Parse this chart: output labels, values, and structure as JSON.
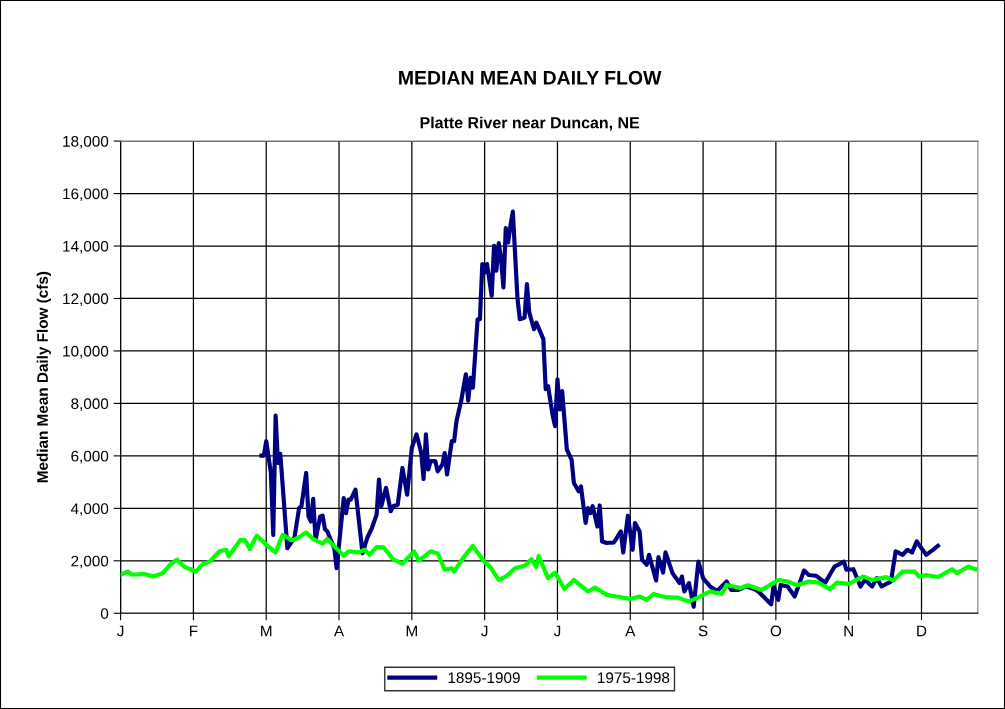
{
  "chart_data": {
    "type": "line",
    "title": "MEDIAN MEAN DAILY FLOW",
    "subtitle": "Platte River near Duncan, NE",
    "ylabel": "Median Mean Daily Flow (cfs)",
    "categories": [
      "J",
      null,
      null,
      null,
      null,
      null,
      null,
      null,
      null,
      null,
      null,
      null,
      null,
      null,
      null,
      null,
      null,
      null,
      null,
      null,
      null,
      null,
      null,
      null,
      null,
      null,
      null,
      null,
      null,
      null,
      null,
      "F",
      null,
      null,
      null,
      null,
      null,
      null,
      null,
      null,
      null,
      null,
      null,
      null,
      null,
      null,
      null,
      null,
      null,
      null,
      null,
      null,
      null,
      null,
      null,
      null,
      null,
      null,
      null,
      null,
      null,
      null,
      "M",
      null,
      null,
      null,
      null,
      null,
      null,
      null,
      null,
      null,
      null,
      null,
      null,
      null,
      null,
      null,
      null,
      null,
      null,
      null,
      null,
      null,
      null,
      null,
      null,
      null,
      null,
      null,
      null,
      null,
      null,
      "A",
      null,
      null,
      null,
      null,
      null,
      null,
      null,
      null,
      null,
      null,
      null,
      null,
      null,
      null,
      null,
      null,
      null,
      null,
      null,
      null,
      null,
      null,
      null,
      null,
      null,
      null,
      null,
      null,
      null,
      null,
      "M",
      null,
      null,
      null,
      null,
      null,
      null,
      null,
      null,
      null,
      null,
      null,
      null,
      null,
      null,
      null,
      null,
      null,
      null,
      null,
      null,
      null,
      null,
      null,
      null,
      null,
      null,
      null,
      null,
      null,
      null,
      "J",
      null,
      null,
      null,
      null,
      null,
      null,
      null,
      null,
      null,
      null,
      null,
      null,
      null,
      null,
      null,
      null,
      null,
      null,
      null,
      null,
      null,
      null,
      null,
      null,
      null,
      null,
      null,
      null,
      null,
      null,
      "J",
      null,
      null,
      null,
      null,
      null,
      null,
      null,
      null,
      null,
      null,
      null,
      null,
      null,
      null,
      null,
      null,
      null,
      null,
      null,
      null,
      null,
      null,
      null,
      null,
      null,
      null,
      null,
      null,
      null,
      null,
      "A",
      null,
      null,
      null,
      null,
      null,
      null,
      null,
      null,
      null,
      null,
      null,
      null,
      null,
      null,
      null,
      null,
      null,
      null,
      null,
      null,
      null,
      null,
      null,
      null,
      null,
      null,
      null,
      null,
      null,
      null,
      "S",
      null,
      null,
      null,
      null,
      null,
      null,
      null,
      null,
      null,
      null,
      null,
      null,
      null,
      null,
      null,
      null,
      null,
      null,
      null,
      null,
      null,
      null,
      null,
      null,
      null,
      null,
      null,
      null,
      null,
      null,
      "O",
      null,
      null,
      null,
      null,
      null,
      null,
      null,
      null,
      null,
      null,
      null,
      null,
      null,
      null,
      null,
      null,
      null,
      null,
      null,
      null,
      null,
      null,
      null,
      null,
      null,
      null,
      null,
      null,
      null,
      null,
      "N",
      null,
      null,
      null,
      null,
      null,
      null,
      null,
      null,
      null,
      null,
      null,
      null,
      null,
      null,
      null,
      null,
      null,
      null,
      null,
      null,
      null,
      null,
      null,
      null,
      null,
      null,
      null,
      null,
      null,
      null,
      "D",
      null,
      null,
      null,
      null,
      null,
      null,
      null,
      null,
      null,
      null,
      null,
      null,
      null,
      null,
      null,
      null,
      null,
      null,
      null,
      null,
      null,
      null,
      null
    ],
    "ylim": [
      0,
      18000
    ],
    "yticks": [
      {
        "value": 0,
        "label": "0"
      },
      {
        "value": 2000,
        "label": "2,000"
      },
      {
        "value": 4000,
        "label": "4,000"
      },
      {
        "value": 6000,
        "label": "6,000"
      },
      {
        "value": 8000,
        "label": "8,000"
      },
      {
        "value": 10000,
        "label": "10,000"
      },
      {
        "value": 12000,
        "label": "12,000"
      },
      {
        "value": 14000,
        "label": "14,000"
      },
      {
        "value": 16000,
        "label": "16,000"
      },
      {
        "value": 18000,
        "label": "18,000"
      }
    ],
    "grid": true,
    "legend": "bottom",
    "marker": "none",
    "line_style": "solid",
    "series": [
      {
        "name": "1895-1909",
        "color": "#000080",
        "values": [
          null,
          null,
          null,
          null,
          null,
          null,
          null,
          null,
          null,
          null,
          null,
          null,
          null,
          null,
          null,
          null,
          null,
          null,
          null,
          null,
          null,
          null,
          null,
          null,
          null,
          null,
          null,
          null,
          null,
          null,
          null,
          null,
          null,
          null,
          null,
          null,
          null,
          null,
          null,
          null,
          null,
          null,
          null,
          null,
          null,
          null,
          null,
          null,
          null,
          null,
          null,
          null,
          null,
          null,
          null,
          null,
          null,
          null,
          null,
          null,
          6010,
          6010,
          6560,
          5960,
          5350,
          2990,
          7540,
          5730,
          6080,
          4880,
          3680,
          2480,
          2610,
          2740,
          2870,
          3440,
          4010,
          4080,
          4720,
          5350,
          3690,
          3500,
          4360,
          2800,
          3250,
          3690,
          3720,
          3210,
          3120,
          2910,
          2690,
          2480,
          1720,
          2610,
          3500,
          4390,
          3820,
          4330,
          4330,
          4520,
          4710,
          3900,
          3100,
          2290,
          2580,
          2870,
          3060,
          3250,
          3510,
          3760,
          5100,
          4080,
          4430,
          4780,
          4340,
          3890,
          4080,
          4110,
          4140,
          4840,
          5540,
          5030,
          4520,
          5420,
          6310,
          6570,
          6820,
          6470,
          6110,
          5120,
          6820,
          5480,
          5800,
          5800,
          5800,
          5410,
          5540,
          5670,
          6110,
          5290,
          5930,
          6560,
          6560,
          7320,
          7710,
          8090,
          8600,
          9110,
          8110,
          8980,
          8600,
          9910,
          11210,
          11210,
          13310,
          12990,
          13310,
          12710,
          12100,
          14010,
          13060,
          14110,
          13500,
          12420,
          14680,
          14140,
          14780,
          15310,
          13640,
          11970,
          11210,
          11240,
          11270,
          12550,
          11460,
          11150,
          10830,
          11080,
          10870,
          10660,
          10450,
          8540,
          8660,
          8090,
          7520,
          7130,
          8920,
          7770,
          8470,
          7360,
          6240,
          6050,
          5860,
          4970,
          4810,
          4650,
          4840,
          4140,
          3440,
          4010,
          3820,
          4080,
          3700,
          3310,
          4110,
          2740,
          2710,
          2680,
          2690,
          2690,
          2700,
          2840,
          2980,
          3120,
          2320,
          3020,
          3720,
          3070,
          2420,
          3440,
          3280,
          3120,
          2040,
          1950,
          1850,
          2230,
          1900,
          1580,
          1250,
          2140,
          1850,
          1550,
          2320,
          2060,
          1790,
          1530,
          1400,
          1280,
          1150,
          1400,
          830,
          990,
          1150,
          700,
          250,
          1110,
          1970,
          1660,
          1340,
          1230,
          1130,
          1020,
          960,
          910,
          850,
          940,
          1030,
          1120,
          1210,
          1050,
          890,
          890,
          890,
          890,
          930,
          980,
          1020,
          1000,
          970,
          950,
          920,
          860,
          790,
          700,
          610,
          520,
          430,
          340,
          1020,
          770,
          510,
          1080,
          1060,
          1040,
          1020,
          890,
          770,
          640,
          890,
          1130,
          1380,
          1630,
          1550,
          1460,
          1450,
          1440,
          1430,
          1370,
          1300,
          1240,
          1170,
          1320,
          1480,
          1630,
          1780,
          1830,
          1870,
          1920,
          1970,
          1660,
          1670,
          1670,
          1680,
          1460,
          1240,
          1020,
          1150,
          1270,
          1190,
          1100,
          1020,
          1180,
          1340,
          1180,
          1020,
          1070,
          1120,
          1160,
          1210,
          1790,
          2360,
          2320,
          2270,
          2230,
          2330,
          2420,
          2370,
          2320,
          2530,
          2740,
          2610,
          2480,
          2360,
          2230,
          2290,
          2360,
          2420,
          2500,
          2570,
          null,
          null,
          null,
          null,
          null,
          null,
          null,
          null,
          null,
          null,
          null,
          null,
          null,
          null,
          null,
          null
        ]
      },
      {
        "name": "1975-1998",
        "color": "#00ff00",
        "values": [
          1470,
          1510,
          1550,
          1590,
          1530,
          1470,
          1480,
          1480,
          1490,
          1490,
          1500,
          1480,
          1450,
          1430,
          1400,
          1430,
          1470,
          1500,
          1530,
          1640,
          1740,
          1850,
          1910,
          1980,
          2040,
          1950,
          1870,
          1780,
          1740,
          1700,
          1670,
          1630,
          1590,
          1680,
          1780,
          1870,
          1900,
          1940,
          1970,
          2070,
          2170,
          2260,
          2360,
          2380,
          2400,
          2420,
          2170,
          2300,
          2420,
          2550,
          2670,
          2800,
          2790,
          2780,
          2620,
          2450,
          2620,
          2790,
          2960,
          2870,
          2790,
          2700,
          2610,
          2540,
          2470,
          2390,
          2320,
          2540,
          2770,
          2990,
          2940,
          2890,
          2830,
          2780,
          2820,
          2860,
          2900,
          2960,
          3020,
          3080,
          3000,
          2910,
          2830,
          2790,
          2740,
          2700,
          2650,
          2740,
          2830,
          2740,
          2640,
          2550,
          2460,
          2370,
          2280,
          2190,
          2280,
          2360,
          2350,
          2340,
          2330,
          2320,
          2350,
          2390,
          2420,
          2330,
          2230,
          2330,
          2420,
          2520,
          2520,
          2510,
          2510,
          2400,
          2290,
          2170,
          2060,
          2020,
          1980,
          1930,
          1890,
          1980,
          2080,
          2170,
          2270,
          2360,
          2190,
          2010,
          2080,
          2150,
          2220,
          2290,
          2360,
          2340,
          2310,
          2290,
          2080,
          1870,
          1660,
          1680,
          1700,
          1720,
          1590,
          1730,
          1860,
          2000,
          2130,
          2240,
          2350,
          2460,
          2570,
          2440,
          2320,
          2190,
          2070,
          1940,
          1880,
          1810,
          1680,
          1540,
          1410,
          1270,
          1310,
          1360,
          1400,
          1480,
          1560,
          1640,
          1720,
          1740,
          1770,
          1790,
          1810,
          1890,
          1980,
          2060,
          1910,
          1760,
          2190,
          1980,
          1770,
          1550,
          1340,
          1410,
          1480,
          1550,
          1390,
          1240,
          1080,
          920,
          1010,
          1100,
          1180,
          1270,
          1200,
          1120,
          1050,
          980,
          900,
          830,
          880,
          930,
          980,
          920,
          870,
          810,
          760,
          700,
          690,
          670,
          660,
          640,
          630,
          610,
          590,
          580,
          560,
          540,
          570,
          590,
          620,
          640,
          600,
          560,
          510,
          590,
          660,
          740,
          710,
          690,
          660,
          640,
          610,
          610,
          610,
          600,
          600,
          600,
          570,
          540,
          510,
          480,
          450,
          490,
          530,
          570,
          610,
          650,
          700,
          740,
          790,
          830,
          810,
          790,
          780,
          760,
          740,
          910,
          1080,
          1060,
          1040,
          1020,
          1000,
          980,
          960,
          1000,
          1030,
          1070,
          1040,
          1010,
          980,
          950,
          920,
          890,
          940,
          1000,
          1050,
          1110,
          1160,
          1220,
          1270,
          1260,
          1240,
          1230,
          1210,
          1180,
          1140,
          1110,
          1070,
          1100,
          1130,
          1150,
          1180,
          1210,
          1200,
          1190,
          1180,
          1170,
          1120,
          1070,
          1020,
          970,
          920,
          1000,
          1090,
          1170,
          1160,
          1150,
          1140,
          1130,
          1120,
          1170,
          1210,
          1260,
          1310,
          1350,
          1400,
          1370,
          1340,
          1300,
          1270,
          1290,
          1310,
          1330,
          1340,
          1360,
          1380,
          1340,
          1290,
          1250,
          1340,
          1420,
          1510,
          1590,
          1590,
          1590,
          1590,
          1590,
          1590,
          1500,
          1400,
          1420,
          1440,
          1460,
          1440,
          1430,
          1410,
          1400,
          1380,
          1430,
          1480,
          1530,
          1580,
          1630,
          1680,
          1610,
          1530,
          1580,
          1630,
          1680,
          1730,
          1780,
          1750,
          1710,
          1680
        ]
      }
    ]
  }
}
